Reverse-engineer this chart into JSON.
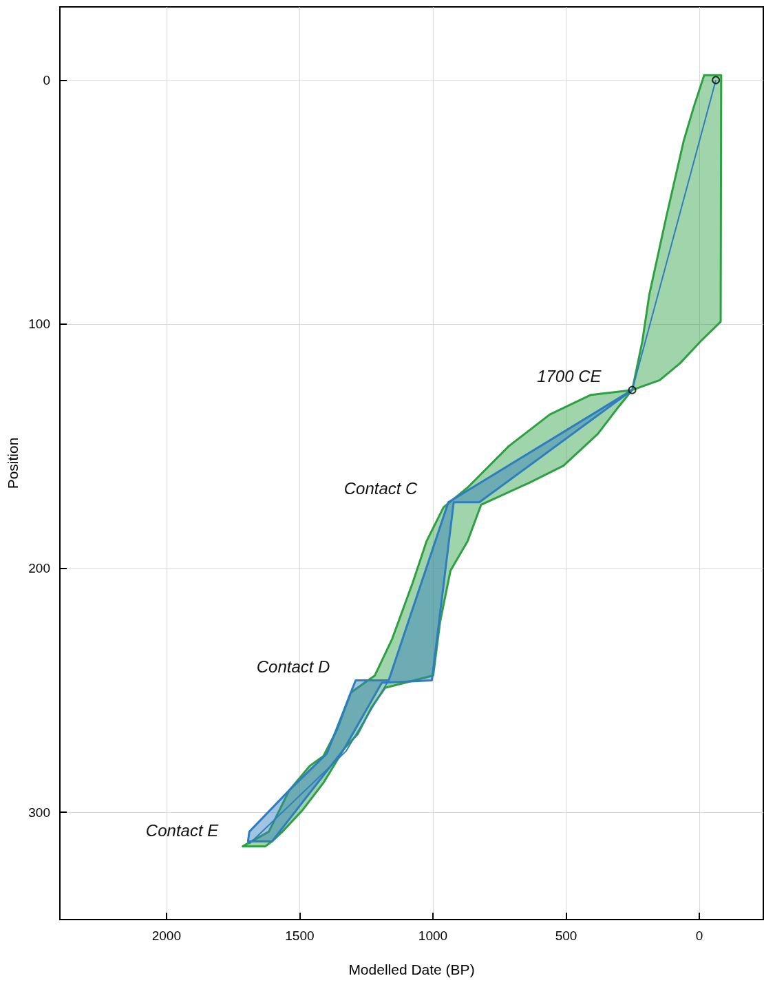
{
  "chart_data": {
    "type": "area",
    "xlabel": "Modelled Date (BP)",
    "ylabel": "Position",
    "xlim": [
      2400,
      -240
    ],
    "xticks": [
      2000,
      1500,
      1000,
      500,
      0
    ],
    "ylim": [
      344,
      -30
    ],
    "yticks": [
      0,
      100,
      200,
      300
    ],
    "grid": true,
    "series": [
      {
        "color": "#2ca043",
        "x": [
          -82,
          -80,
          -5,
          72,
          149,
          252,
          304,
          381,
          510,
          638,
          819,
          870,
          934,
          973,
          999,
          1179,
          1230,
          1282,
          1333,
          1411,
          1488,
          1565,
          1604,
          1629,
          1714,
          1616,
          1539,
          1462,
          1411,
          1359,
          1308,
          1218,
          1153,
          1076,
          1024,
          960,
          870,
          715,
          561,
          407,
          252,
          214,
          188,
          124,
          59,
          21,
          -18
        ],
        "values": [
          -2,
          99,
          107,
          116,
          123,
          127,
          134,
          145,
          158,
          165,
          174,
          189,
          201,
          222,
          244,
          249,
          257,
          268,
          274,
          288,
          299,
          308,
          312,
          314,
          314,
          308,
          291,
          281,
          277,
          266,
          251,
          244,
          229,
          206,
          189,
          175,
          167,
          150,
          137,
          129,
          127,
          107,
          88,
          56,
          25,
          11,
          -2
        ]
      },
      {
        "color": "#2f7dbf",
        "x": [
          252,
          826,
          922,
          1004,
          1192,
          1333,
          1604,
          1694,
          1689,
          1539,
          1398,
          1290,
          1166,
          942
        ],
        "values": [
          127,
          173,
          173,
          246,
          247,
          274,
          312,
          312,
          308,
          291,
          276,
          246,
          246,
          173
        ]
      },
      {
        "type": "line",
        "color": "#2f7dbf",
        "line_style": "solid",
        "marker": "none",
        "x": [
          -62,
          252,
          942,
          1166,
          1326,
          1689
        ],
        "values": [
          0,
          127,
          173,
          246,
          275,
          313
        ]
      },
      {
        "type": "scatter",
        "color": "#000000",
        "marker": "circle",
        "x": [
          -62,
          252
        ],
        "values": [
          0,
          127
        ]
      }
    ],
    "annotations": [
      {
        "text": "1700 CE",
        "x": 252,
        "y": 127
      },
      {
        "text": "Contact C",
        "x": 942,
        "y": 173
      },
      {
        "text": "Contact D",
        "x": 1270,
        "y": 246
      },
      {
        "text": "Contact E",
        "x": 1689,
        "y": 313
      }
    ]
  }
}
